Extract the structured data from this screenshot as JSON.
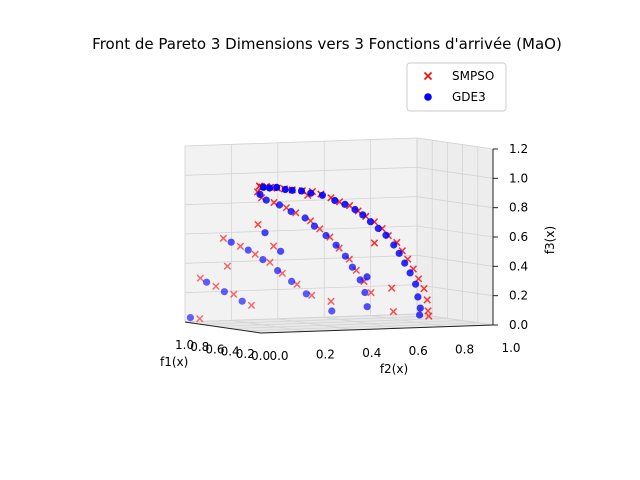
{
  "chart_data": {
    "type": "scatter",
    "projection": "3d",
    "title": "Front de Pareto 3 Dimensions vers 3 Fonctions d'arrivée (MaO)",
    "xlabel": "f1(x)",
    "ylabel": "f2(x)",
    "zlabel": "f3(x)",
    "xlim": [
      0.0,
      1.0
    ],
    "ylim": [
      0.0,
      1.0
    ],
    "zlim": [
      0.0,
      1.2
    ],
    "x_ticks": [
      "0.0",
      "0.2",
      "0.4",
      "0.6",
      "0.8",
      "1.0"
    ],
    "y_ticks": [
      "0.0",
      "0.2",
      "0.4",
      "0.6",
      "0.8",
      "1.0"
    ],
    "z_ticks": [
      "0.0",
      "0.2",
      "0.4",
      "0.6",
      "0.8",
      "1.0",
      "1.2"
    ],
    "grid": true,
    "legend_position": "top-right",
    "series": [
      {
        "name": "SMPSO",
        "marker": "x",
        "color": "#ff0000",
        "points": [
          [
            0.02,
            0.0,
            1.0
          ],
          [
            0.05,
            0.02,
            0.99
          ],
          [
            0.08,
            0.05,
            0.99
          ],
          [
            0.12,
            0.08,
            0.98
          ],
          [
            0.15,
            0.12,
            0.97
          ],
          [
            0.18,
            0.16,
            0.96
          ],
          [
            0.2,
            0.2,
            0.95
          ],
          [
            0.22,
            0.25,
            0.94
          ],
          [
            0.24,
            0.3,
            0.93
          ],
          [
            0.25,
            0.34,
            0.91
          ],
          [
            0.27,
            0.39,
            0.88
          ],
          [
            0.28,
            0.43,
            0.85
          ],
          [
            0.3,
            0.48,
            0.82
          ],
          [
            0.31,
            0.52,
            0.78
          ],
          [
            0.33,
            0.56,
            0.74
          ],
          [
            0.34,
            0.6,
            0.7
          ],
          [
            0.36,
            0.64,
            0.65
          ],
          [
            0.37,
            0.67,
            0.6
          ],
          [
            0.38,
            0.71,
            0.55
          ],
          [
            0.4,
            0.74,
            0.49
          ],
          [
            0.42,
            0.77,
            0.43
          ],
          [
            0.44,
            0.8,
            0.36
          ],
          [
            0.46,
            0.83,
            0.29
          ],
          [
            0.48,
            0.86,
            0.22
          ],
          [
            0.5,
            0.88,
            0.14
          ],
          [
            0.55,
            0.9,
            0.06
          ],
          [
            0.6,
            0.92,
            0.02
          ],
          [
            0.45,
            0.15,
            0.88
          ],
          [
            0.5,
            0.22,
            0.84
          ],
          [
            0.52,
            0.28,
            0.8
          ],
          [
            0.55,
            0.33,
            0.76
          ],
          [
            0.57,
            0.4,
            0.7
          ],
          [
            0.6,
            0.45,
            0.64
          ],
          [
            0.62,
            0.5,
            0.58
          ],
          [
            0.65,
            0.55,
            0.5
          ],
          [
            0.67,
            0.6,
            0.42
          ],
          [
            0.7,
            0.64,
            0.34
          ],
          [
            0.72,
            0.68,
            0.26
          ],
          [
            0.75,
            0.72,
            0.18
          ],
          [
            0.8,
            0.1,
            0.58
          ],
          [
            0.82,
            0.18,
            0.52
          ],
          [
            0.84,
            0.25,
            0.46
          ],
          [
            0.86,
            0.32,
            0.4
          ],
          [
            0.88,
            0.38,
            0.32
          ],
          [
            0.9,
            0.45,
            0.24
          ],
          [
            0.92,
            0.52,
            0.16
          ],
          [
            0.95,
            0.05,
            0.3
          ],
          [
            0.96,
            0.12,
            0.24
          ],
          [
            0.97,
            0.2,
            0.18
          ],
          [
            0.98,
            0.28,
            0.1
          ],
          [
            0.99,
            0.06,
            0.02
          ],
          [
            0.7,
            0.8,
            0.05
          ],
          [
            0.6,
            0.76,
            0.22
          ],
          [
            0.35,
            0.1,
            0.93
          ],
          [
            0.4,
            0.62,
            0.55
          ],
          [
            0.3,
            0.3,
            0.9
          ],
          [
            0.85,
            0.58,
            0.12
          ],
          [
            0.75,
            0.3,
            0.52
          ],
          [
            0.65,
            0.2,
            0.68
          ],
          [
            0.9,
            0.15,
            0.38
          ]
        ]
      },
      {
        "name": "GDE3",
        "marker": "o",
        "color": "#0000ff",
        "points": [
          [
            0.03,
            0.02,
            0.99
          ],
          [
            0.07,
            0.06,
            0.98
          ],
          [
            0.1,
            0.1,
            0.98
          ],
          [
            0.14,
            0.15,
            0.96
          ],
          [
            0.17,
            0.19,
            0.95
          ],
          [
            0.2,
            0.24,
            0.94
          ],
          [
            0.23,
            0.29,
            0.92
          ],
          [
            0.26,
            0.35,
            0.9
          ],
          [
            0.28,
            0.41,
            0.86
          ],
          [
            0.3,
            0.46,
            0.83
          ],
          [
            0.32,
            0.51,
            0.79
          ],
          [
            0.34,
            0.55,
            0.75
          ],
          [
            0.36,
            0.59,
            0.7
          ],
          [
            0.38,
            0.63,
            0.65
          ],
          [
            0.4,
            0.67,
            0.6
          ],
          [
            0.42,
            0.71,
            0.53
          ],
          [
            0.44,
            0.74,
            0.47
          ],
          [
            0.46,
            0.77,
            0.4
          ],
          [
            0.48,
            0.8,
            0.33
          ],
          [
            0.5,
            0.83,
            0.25
          ],
          [
            0.53,
            0.85,
            0.16
          ],
          [
            0.56,
            0.87,
            0.08
          ],
          [
            0.6,
            0.88,
            0.03
          ],
          [
            0.48,
            0.18,
            0.86
          ],
          [
            0.52,
            0.25,
            0.82
          ],
          [
            0.55,
            0.31,
            0.77
          ],
          [
            0.58,
            0.38,
            0.72
          ],
          [
            0.61,
            0.43,
            0.66
          ],
          [
            0.64,
            0.49,
            0.59
          ],
          [
            0.66,
            0.54,
            0.52
          ],
          [
            0.69,
            0.59,
            0.44
          ],
          [
            0.72,
            0.63,
            0.36
          ],
          [
            0.74,
            0.67,
            0.27
          ],
          [
            0.77,
            0.7,
            0.18
          ],
          [
            0.8,
            0.72,
            0.08
          ],
          [
            0.82,
            0.14,
            0.55
          ],
          [
            0.84,
            0.22,
            0.49
          ],
          [
            0.86,
            0.29,
            0.42
          ],
          [
            0.88,
            0.36,
            0.34
          ],
          [
            0.91,
            0.43,
            0.26
          ],
          [
            0.93,
            0.5,
            0.17
          ],
          [
            0.96,
            0.08,
            0.27
          ],
          [
            0.97,
            0.16,
            0.2
          ],
          [
            0.98,
            0.24,
            0.13
          ],
          [
            0.99,
            0.02,
            0.03
          ],
          [
            0.38,
            0.12,
            0.91
          ],
          [
            0.68,
            0.24,
            0.62
          ],
          [
            0.78,
            0.34,
            0.48
          ],
          [
            0.62,
            0.66,
            0.3
          ],
          [
            0.9,
            0.6,
            0.05
          ]
        ]
      }
    ]
  }
}
